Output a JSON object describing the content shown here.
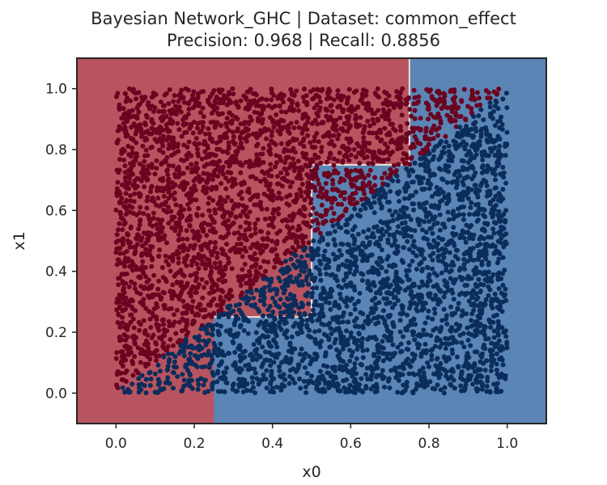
{
  "header": {
    "title": "Bayesian Network_GHC | Dataset: common_effect",
    "subtitle": "Precision: 0.968 | Recall: 0.8856"
  },
  "colors": {
    "region_class0": "#b8545f",
    "region_class1": "#5a85b5",
    "points_class0": "#6b0420",
    "points_class1": "#0b2d5c",
    "boundary": "#e8e0d8",
    "axes": "#262626"
  },
  "chart_data": {
    "type": "scatter",
    "title": "Bayesian Network_GHC | Dataset: common_effect",
    "subtitle": "Precision: 0.968 | Recall: 0.8856",
    "xlabel": "x0",
    "ylabel": "x1",
    "xlim": [
      -0.1,
      1.1
    ],
    "ylim": [
      -0.1,
      1.1
    ],
    "xticks": [
      "0.0",
      "0.2",
      "0.4",
      "0.6",
      "0.8",
      "1.0"
    ],
    "yticks": [
      "0.0",
      "0.2",
      "0.4",
      "0.6",
      "0.8",
      "1.0"
    ],
    "grid": false,
    "point_domain": {
      "x": [
        0,
        1
      ],
      "y": [
        0,
        1
      ]
    },
    "point_count_approx": 5000,
    "true_boundary": "x1 = x0",
    "series": [
      {
        "rule": "x1 > x0"
      },
      {
        "rule": "x1 <= x0"
      }
    ],
    "decision_regions": {
      "class1_polygon": [
        [
          0.25,
          -0.1
        ],
        [
          1.1,
          -0.1
        ],
        [
          1.1,
          1.1
        ],
        [
          0.75,
          1.1
        ],
        [
          0.75,
          0.75
        ],
        [
          0.5,
          0.75
        ],
        [
          0.5,
          0.25
        ],
        [
          0.25,
          0.25
        ]
      ]
    }
  }
}
